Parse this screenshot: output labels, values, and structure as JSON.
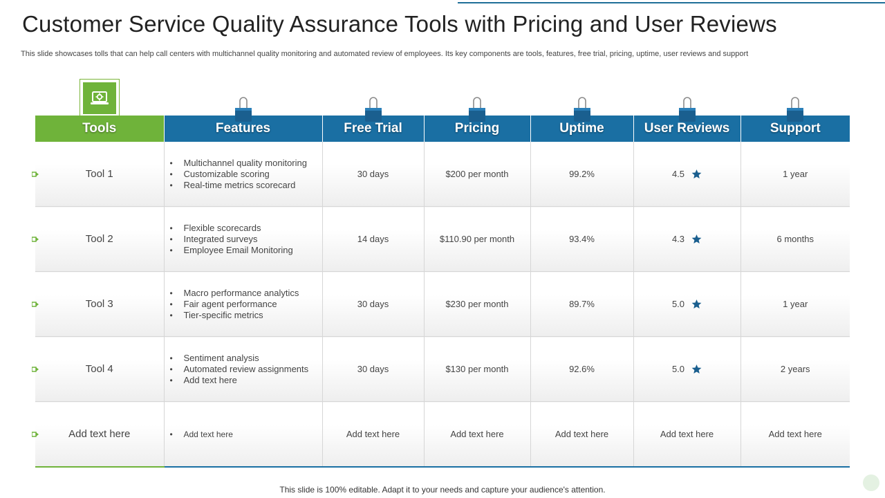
{
  "title": "Customer Service Quality Assurance Tools with Pricing and User Reviews",
  "subtitle": "This slide showcases tolls that can help call centers with multichannel quality monitoring and automated review of employees. Its key components are tools, features, free trial, pricing, uptime, user reviews and support",
  "colors": {
    "green": "#6fb33a",
    "blue": "#1a6fa3",
    "star": "#1a5f8f"
  },
  "headers": {
    "tools": "Tools",
    "features": "Features",
    "free_trial": "Free Trial",
    "pricing": "Pricing",
    "uptime": "Uptime",
    "user_reviews": "User Reviews",
    "support": "Support"
  },
  "rows": [
    {
      "tool": "Tool 1",
      "features": [
        "Multichannel quality monitoring",
        "Customizable scoring",
        "Real-time metrics scorecard"
      ],
      "free_trial": "30 days",
      "pricing": "$200 per month",
      "uptime": "99.2%",
      "rating": "4.5",
      "support": "1 year"
    },
    {
      "tool": "Tool 2",
      "features": [
        "Flexible scorecards",
        "Integrated surveys",
        "Employee Email Monitoring"
      ],
      "free_trial": "14 days",
      "pricing": "$110.90 per month",
      "uptime": "93.4%",
      "rating": "4.3",
      "support": "6 months"
    },
    {
      "tool": "Tool 3",
      "features": [
        "Macro performance analytics",
        "Fair agent performance",
        "Tier-specific metrics"
      ],
      "free_trial": "30 days",
      "pricing": "$230 per month",
      "uptime": "89.7%",
      "rating": "5.0",
      "support": "1 year"
    },
    {
      "tool": "Tool 4",
      "features": [
        "Sentiment analysis",
        "Automated review assignments",
        "Add text here"
      ],
      "free_trial": "30 days",
      "pricing": "$130 per month",
      "uptime": "92.6%",
      "rating": "5.0",
      "support": "2 years"
    },
    {
      "tool": "Add text here",
      "features": [
        "Add text here"
      ],
      "free_trial": "Add text here",
      "pricing": "Add text here",
      "uptime": "Add text here",
      "rating": "Add text here",
      "support": "Add text here"
    }
  ],
  "footer": "This slide is 100% editable. Adapt it to your needs and capture your audience's attention."
}
